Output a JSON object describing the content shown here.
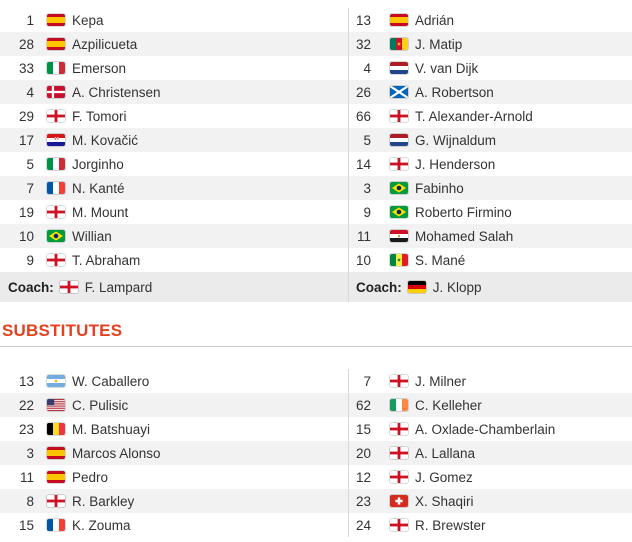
{
  "colors": {
    "accent": "#e2431e",
    "row_alt_bg": "#f2f2f2",
    "coach_row_bg": "#ebebeb",
    "column_divider": "#d8d8d8",
    "section_rule": "#cccccc",
    "text": "#333333"
  },
  "lineups": {
    "home": {
      "players": [
        {
          "number": "1",
          "name": "Kepa",
          "flag": "spain"
        },
        {
          "number": "28",
          "name": "Azpilicueta",
          "flag": "spain"
        },
        {
          "number": "33",
          "name": "Emerson",
          "flag": "italy"
        },
        {
          "number": "4",
          "name": "A. Christensen",
          "flag": "denmark"
        },
        {
          "number": "29",
          "name": "F. Tomori",
          "flag": "england"
        },
        {
          "number": "17",
          "name": "M. Kovačić",
          "flag": "croatia"
        },
        {
          "number": "5",
          "name": "Jorginho",
          "flag": "italy"
        },
        {
          "number": "7",
          "name": "N. Kanté",
          "flag": "france"
        },
        {
          "number": "19",
          "name": "M. Mount",
          "flag": "england"
        },
        {
          "number": "10",
          "name": "Willian",
          "flag": "brazil"
        },
        {
          "number": "9",
          "name": "T. Abraham",
          "flag": "england"
        }
      ],
      "coach": {
        "label": "Coach:",
        "name": "F. Lampard",
        "flag": "england"
      }
    },
    "away": {
      "players": [
        {
          "number": "13",
          "name": "Adrián",
          "flag": "spain"
        },
        {
          "number": "32",
          "name": "J. Matip",
          "flag": "cameroon"
        },
        {
          "number": "4",
          "name": "V. van Dijk",
          "flag": "netherlands"
        },
        {
          "number": "26",
          "name": "A. Robertson",
          "flag": "scotland"
        },
        {
          "number": "66",
          "name": "T. Alexander-Arnold",
          "flag": "england"
        },
        {
          "number": "5",
          "name": "G. Wijnaldum",
          "flag": "netherlands"
        },
        {
          "number": "14",
          "name": "J. Henderson",
          "flag": "england"
        },
        {
          "number": "3",
          "name": "Fabinho",
          "flag": "brazil"
        },
        {
          "number": "9",
          "name": "Roberto Firmino",
          "flag": "brazil"
        },
        {
          "number": "11",
          "name": "Mohamed Salah",
          "flag": "egypt"
        },
        {
          "number": "10",
          "name": "S. Mané",
          "flag": "senegal"
        }
      ],
      "coach": {
        "label": "Coach:",
        "name": "J. Klopp",
        "flag": "germany"
      }
    }
  },
  "substitutes": {
    "title": "SUBSTITUTES",
    "home": [
      {
        "number": "13",
        "name": "W. Caballero",
        "flag": "argentina"
      },
      {
        "number": "22",
        "name": "C. Pulisic",
        "flag": "usa"
      },
      {
        "number": "23",
        "name": "M. Batshuayi",
        "flag": "belgium"
      },
      {
        "number": "3",
        "name": "Marcos Alonso",
        "flag": "spain"
      },
      {
        "number": "11",
        "name": "Pedro",
        "flag": "spain"
      },
      {
        "number": "8",
        "name": "R. Barkley",
        "flag": "england"
      },
      {
        "number": "15",
        "name": "K. Zouma",
        "flag": "france"
      }
    ],
    "away": [
      {
        "number": "7",
        "name": "J. Milner",
        "flag": "england"
      },
      {
        "number": "62",
        "name": "C. Kelleher",
        "flag": "ireland"
      },
      {
        "number": "15",
        "name": "A. Oxlade-Chamberlain",
        "flag": "england"
      },
      {
        "number": "20",
        "name": "A. Lallana",
        "flag": "england"
      },
      {
        "number": "12",
        "name": "J. Gomez",
        "flag": "england"
      },
      {
        "number": "23",
        "name": "X. Shaqiri",
        "flag": "switzerland"
      },
      {
        "number": "24",
        "name": "R. Brewster",
        "flag": "england"
      }
    ]
  }
}
